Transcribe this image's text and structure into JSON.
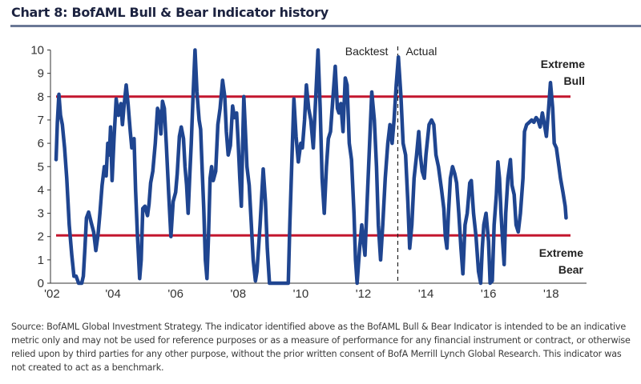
{
  "header": {
    "title": "Chart 8: BofAML Bull & Bear Indicator history"
  },
  "footer": {
    "source": "Source:  BofAML Global Investment Strategy. The indicator identified above as the  BofAML Bull & Bear Indicator is intended to be an indicative metric only and  may not be used  for reference purposes  or as a measure of performance for any financial instrument  or contract, or otherwise  relied upon by third parties for any other purpose,  without  the  prior written consent  of BofA Merrill Lynch Global Research. This indicator  was not created to act as a benchmark."
  },
  "colors": {
    "series": "#1f4590",
    "threshold": "#c3162e",
    "axis": "#333333",
    "title_rule": "#6a7896"
  },
  "chart_data": {
    "type": "line",
    "title": "Chart 8: BofAML Bull & Bear Indicator history",
    "xlabel": "",
    "ylabel": "",
    "ylim": [
      0,
      10
    ],
    "xlim": [
      2002.0,
      2018.85
    ],
    "yticks": [
      "0",
      "1",
      "2",
      "3",
      "4",
      "5",
      "6",
      "7",
      "8",
      "9",
      "10"
    ],
    "xticks": [
      {
        "year": 2002.05,
        "label": "'02"
      },
      {
        "year": 2004.0,
        "label": "'04"
      },
      {
        "year": 2006.0,
        "label": "'06"
      },
      {
        "year": 2008.0,
        "label": "'08"
      },
      {
        "year": 2010.0,
        "label": "'10"
      },
      {
        "year": 2012.0,
        "label": "'12"
      },
      {
        "year": 2014.0,
        "label": "'14"
      },
      {
        "year": 2016.0,
        "label": "'16"
      },
      {
        "year": 2018.0,
        "label": "'18"
      }
    ],
    "grid": false,
    "thresholds": [
      {
        "name": "Extreme Bull",
        "value": 8.0,
        "label_lines": [
          "Extreme",
          "Bull"
        ]
      },
      {
        "name": "Extreme Bear",
        "value": 2.05,
        "label_lines": [
          "Extreme",
          "Bear"
        ]
      }
    ],
    "divider": {
      "year": 2013.1,
      "left_label": "Backtest",
      "right_label": "Actual"
    },
    "series": [
      {
        "name": "BofAML Bull & Bear Indicator",
        "points": [
          [
            2002.18,
            5.3
          ],
          [
            2002.22,
            6.9
          ],
          [
            2002.27,
            8.1
          ],
          [
            2002.32,
            7.2
          ],
          [
            2002.38,
            6.8
          ],
          [
            2002.45,
            5.8
          ],
          [
            2002.52,
            4.5
          ],
          [
            2002.6,
            2.5
          ],
          [
            2002.68,
            1.2
          ],
          [
            2002.75,
            0.3
          ],
          [
            2002.82,
            0.3
          ],
          [
            2002.9,
            0.0
          ],
          [
            2003.0,
            0.0
          ],
          [
            2003.05,
            0.3
          ],
          [
            2003.1,
            1.5
          ],
          [
            2003.15,
            2.8
          ],
          [
            2003.22,
            3.05
          ],
          [
            2003.3,
            2.6
          ],
          [
            2003.38,
            2.2
          ],
          [
            2003.45,
            1.4
          ],
          [
            2003.52,
            2.1
          ],
          [
            2003.58,
            3.0
          ],
          [
            2003.65,
            4.2
          ],
          [
            2003.72,
            5.0
          ],
          [
            2003.78,
            4.6
          ],
          [
            2003.83,
            6.0
          ],
          [
            2003.88,
            5.5
          ],
          [
            2003.92,
            6.7
          ],
          [
            2003.97,
            4.4
          ],
          [
            2004.03,
            6.2
          ],
          [
            2004.1,
            7.9
          ],
          [
            2004.17,
            7.2
          ],
          [
            2004.25,
            7.7
          ],
          [
            2004.3,
            6.8
          ],
          [
            2004.35,
            7.6
          ],
          [
            2004.42,
            8.5
          ],
          [
            2004.48,
            7.7
          ],
          [
            2004.55,
            6.5
          ],
          [
            2004.6,
            5.8
          ],
          [
            2004.67,
            6.2
          ],
          [
            2004.72,
            4.0
          ],
          [
            2004.78,
            2.0
          ],
          [
            2004.85,
            0.2
          ],
          [
            2004.9,
            1.0
          ],
          [
            2004.95,
            3.2
          ],
          [
            2005.02,
            3.3
          ],
          [
            2005.1,
            2.9
          ],
          [
            2005.15,
            3.4
          ],
          [
            2005.2,
            4.3
          ],
          [
            2005.27,
            4.8
          ],
          [
            2005.35,
            6.0
          ],
          [
            2005.42,
            7.5
          ],
          [
            2005.48,
            7.3
          ],
          [
            2005.53,
            6.4
          ],
          [
            2005.58,
            7.8
          ],
          [
            2005.64,
            7.5
          ],
          [
            2005.7,
            6.0
          ],
          [
            2005.78,
            3.8
          ],
          [
            2005.85,
            2.0
          ],
          [
            2005.92,
            3.5
          ],
          [
            2006.0,
            3.9
          ],
          [
            2006.05,
            4.7
          ],
          [
            2006.12,
            6.3
          ],
          [
            2006.18,
            6.7
          ],
          [
            2006.25,
            6.2
          ],
          [
            2006.3,
            5.0
          ],
          [
            2006.35,
            4.2
          ],
          [
            2006.4,
            3.0
          ],
          [
            2006.45,
            4.6
          ],
          [
            2006.5,
            6.0
          ],
          [
            2006.55,
            7.8
          ],
          [
            2006.62,
            10.0
          ],
          [
            2006.68,
            8.2
          ],
          [
            2006.75,
            7.0
          ],
          [
            2006.8,
            6.6
          ],
          [
            2006.85,
            4.8
          ],
          [
            2006.9,
            3.2
          ],
          [
            2006.95,
            1.0
          ],
          [
            2007.0,
            0.2
          ],
          [
            2007.05,
            2.0
          ],
          [
            2007.1,
            4.5
          ],
          [
            2007.15,
            5.0
          ],
          [
            2007.2,
            4.4
          ],
          [
            2007.28,
            4.8
          ],
          [
            2007.35,
            6.8
          ],
          [
            2007.42,
            7.5
          ],
          [
            2007.5,
            8.7
          ],
          [
            2007.57,
            8.0
          ],
          [
            2007.62,
            6.5
          ],
          [
            2007.68,
            5.5
          ],
          [
            2007.75,
            5.9
          ],
          [
            2007.82,
            7.6
          ],
          [
            2007.88,
            7.1
          ],
          [
            2007.95,
            7.3
          ],
          [
            2008.0,
            6.0
          ],
          [
            2008.05,
            4.5
          ],
          [
            2008.1,
            3.3
          ],
          [
            2008.15,
            6.5
          ],
          [
            2008.18,
            8.0
          ],
          [
            2008.23,
            6.5
          ],
          [
            2008.28,
            5.0
          ],
          [
            2008.35,
            4.2
          ],
          [
            2008.42,
            2.5
          ],
          [
            2008.48,
            1.0
          ],
          [
            2008.55,
            0.1
          ],
          [
            2008.6,
            0.5
          ],
          [
            2008.7,
            2.5
          ],
          [
            2008.8,
            4.9
          ],
          [
            2008.87,
            3.5
          ],
          [
            2008.93,
            1.5
          ],
          [
            2009.0,
            0.0
          ],
          [
            2009.3,
            0.0
          ],
          [
            2009.6,
            0.0
          ],
          [
            2009.65,
            2.5
          ],
          [
            2009.72,
            5.5
          ],
          [
            2009.78,
            7.9
          ],
          [
            2009.85,
            6.3
          ],
          [
            2009.92,
            5.2
          ],
          [
            2010.0,
            6.0
          ],
          [
            2010.05,
            5.8
          ],
          [
            2010.12,
            7.0
          ],
          [
            2010.18,
            8.5
          ],
          [
            2010.25,
            7.5
          ],
          [
            2010.32,
            7.0
          ],
          [
            2010.4,
            5.8
          ],
          [
            2010.48,
            8.0
          ],
          [
            2010.55,
            10.0
          ],
          [
            2010.62,
            7.5
          ],
          [
            2010.68,
            4.5
          ],
          [
            2010.75,
            3.0
          ],
          [
            2010.82,
            5.0
          ],
          [
            2010.88,
            6.2
          ],
          [
            2010.95,
            6.5
          ],
          [
            2011.02,
            7.8
          ],
          [
            2011.1,
            9.3
          ],
          [
            2011.17,
            7.5
          ],
          [
            2011.22,
            7.3
          ],
          [
            2011.28,
            7.7
          ],
          [
            2011.35,
            6.5
          ],
          [
            2011.42,
            8.8
          ],
          [
            2011.48,
            8.5
          ],
          [
            2011.55,
            6.0
          ],
          [
            2011.62,
            5.3
          ],
          [
            2011.7,
            3.0
          ],
          [
            2011.75,
            1.0
          ],
          [
            2011.8,
            0.0
          ],
          [
            2011.88,
            1.5
          ],
          [
            2011.95,
            2.5
          ],
          [
            2012.0,
            1.8
          ],
          [
            2012.05,
            1.2
          ],
          [
            2012.12,
            3.5
          ],
          [
            2012.2,
            6.0
          ],
          [
            2012.27,
            8.2
          ],
          [
            2012.35,
            7.0
          ],
          [
            2012.42,
            5.0
          ],
          [
            2012.48,
            2.5
          ],
          [
            2012.55,
            1.0
          ],
          [
            2012.62,
            2.5
          ],
          [
            2012.7,
            4.5
          ],
          [
            2012.78,
            6.0
          ],
          [
            2012.85,
            6.8
          ],
          [
            2012.92,
            6.0
          ],
          [
            2012.98,
            7.0
          ],
          [
            2013.05,
            8.5
          ],
          [
            2013.12,
            9.7
          ],
          [
            2013.2,
            8.0
          ],
          [
            2013.27,
            6.0
          ],
          [
            2013.35,
            5.5
          ],
          [
            2013.42,
            3.5
          ],
          [
            2013.48,
            1.5
          ],
          [
            2013.55,
            2.5
          ],
          [
            2013.62,
            4.5
          ],
          [
            2013.7,
            5.5
          ],
          [
            2013.77,
            6.5
          ],
          [
            2013.82,
            5.5
          ],
          [
            2013.88,
            4.8
          ],
          [
            2013.95,
            4.5
          ],
          [
            2014.0,
            5.5
          ],
          [
            2014.1,
            6.8
          ],
          [
            2014.18,
            7.0
          ],
          [
            2014.25,
            6.8
          ],
          [
            2014.32,
            5.5
          ],
          [
            2014.4,
            5.0
          ],
          [
            2014.5,
            4.0
          ],
          [
            2014.57,
            3.2
          ],
          [
            2014.62,
            2.0
          ],
          [
            2014.67,
            1.5
          ],
          [
            2014.72,
            3.0
          ],
          [
            2014.78,
            4.5
          ],
          [
            2014.85,
            5.0
          ],
          [
            2014.92,
            4.7
          ],
          [
            2014.98,
            4.3
          ],
          [
            2015.05,
            3.0
          ],
          [
            2015.12,
            1.5
          ],
          [
            2015.18,
            0.4
          ],
          [
            2015.25,
            2.5
          ],
          [
            2015.32,
            3.0
          ],
          [
            2015.4,
            4.3
          ],
          [
            2015.45,
            4.4
          ],
          [
            2015.52,
            3.0
          ],
          [
            2015.6,
            2.0
          ],
          [
            2015.68,
            0.5
          ],
          [
            2015.75,
            0.0
          ],
          [
            2015.8,
            1.5
          ],
          [
            2015.85,
            2.5
          ],
          [
            2015.92,
            3.0
          ],
          [
            2016.0,
            1.8
          ],
          [
            2016.05,
            0.0
          ],
          [
            2016.12,
            0.1
          ],
          [
            2016.18,
            2.5
          ],
          [
            2016.25,
            3.8
          ],
          [
            2016.3,
            5.2
          ],
          [
            2016.35,
            4.5
          ],
          [
            2016.4,
            3.0
          ],
          [
            2016.45,
            1.8
          ],
          [
            2016.5,
            0.8
          ],
          [
            2016.55,
            3.0
          ],
          [
            2016.62,
            4.5
          ],
          [
            2016.7,
            5.3
          ],
          [
            2016.75,
            4.2
          ],
          [
            2016.82,
            3.8
          ],
          [
            2016.88,
            2.5
          ],
          [
            2016.95,
            2.2
          ],
          [
            2017.02,
            3.0
          ],
          [
            2017.1,
            4.5
          ],
          [
            2017.15,
            6.5
          ],
          [
            2017.22,
            6.8
          ],
          [
            2017.3,
            6.9
          ],
          [
            2017.38,
            7.0
          ],
          [
            2017.45,
            6.9
          ],
          [
            2017.52,
            7.1
          ],
          [
            2017.58,
            7.0
          ],
          [
            2017.65,
            6.7
          ],
          [
            2017.72,
            7.3
          ],
          [
            2017.8,
            6.7
          ],
          [
            2017.85,
            6.3
          ],
          [
            2017.92,
            7.5
          ],
          [
            2017.98,
            8.6
          ],
          [
            2018.05,
            7.5
          ],
          [
            2018.1,
            6.0
          ],
          [
            2018.17,
            5.8
          ],
          [
            2018.25,
            5.0
          ],
          [
            2018.3,
            4.5
          ],
          [
            2018.38,
            3.9
          ],
          [
            2018.45,
            3.3
          ],
          [
            2018.48,
            2.8
          ]
        ]
      }
    ]
  }
}
